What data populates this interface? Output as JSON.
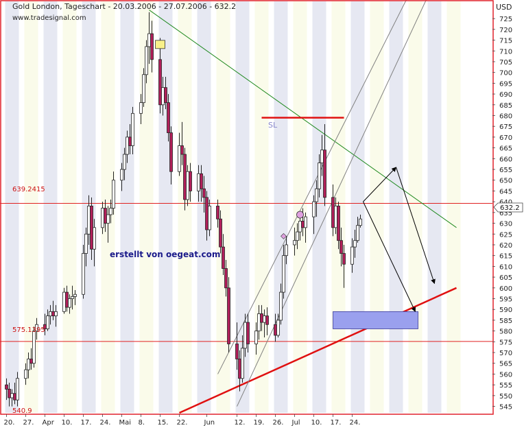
{
  "header": {
    "title": "Gold London, Tageschart - 20.03.2006 - 27.07.2006 - 632.2",
    "source": "www.tradesignal.com",
    "currency": "USD"
  },
  "annotations": {
    "watermark": "erstellt von oegeat.com",
    "sl_label": "SL",
    "level_high": "639.2415",
    "level_low": "575.1395",
    "last_price": "632.2",
    "bottom_value": "540.9"
  },
  "colors": {
    "background": "#ffffff",
    "band": "#e6e8f2",
    "band_light": "#fafbea",
    "border": "#e0202a",
    "candle_up": "#ffffff",
    "candle_down": "#b0205a",
    "hline": "#e02020",
    "trend_green": "#208a20",
    "support_red": "#e01010",
    "channel": "#808080",
    "arrows": "#000000",
    "target_box": "#9aa0ee",
    "text_red": "#cc1010",
    "text_navy": "#1a1a8a"
  },
  "chart_data": {
    "type": "candlestick",
    "title": "Gold London, Tageschart - 20.03.2006 - 27.07.2006 - 632.2",
    "ylabel": "USD",
    "ylim": [
      542,
      733
    ],
    "y_ticks": [
      545,
      550,
      555,
      560,
      565,
      570,
      575,
      580,
      585,
      590,
      595,
      600,
      605,
      610,
      615,
      620,
      625,
      630,
      635,
      640,
      645,
      650,
      655,
      660,
      665,
      670,
      675,
      680,
      685,
      690,
      695,
      700,
      705,
      710,
      715,
      720,
      725
    ],
    "x_tick_labels": [
      {
        "label": "20.",
        "date": "2006-03-20"
      },
      {
        "label": "27.",
        "date": "2006-03-27"
      },
      {
        "label": "Apr",
        "date": "2006-04-03"
      },
      {
        "label": "10.",
        "date": "2006-04-10"
      },
      {
        "label": "17.",
        "date": "2006-04-17"
      },
      {
        "label": "24.",
        "date": "2006-04-24"
      },
      {
        "label": "Mai",
        "date": "2006-05-01"
      },
      {
        "label": "8.",
        "date": "2006-05-08"
      },
      {
        "label": "15.",
        "date": "2006-05-15"
      },
      {
        "label": "22.",
        "date": "2006-05-22"
      },
      {
        "label": "Jun",
        "date": "2006-06-01"
      },
      {
        "label": "12.",
        "date": "2006-06-12"
      },
      {
        "label": "19.",
        "date": "2006-06-19"
      },
      {
        "label": "26.",
        "date": "2006-06-26"
      },
      {
        "label": "Jul",
        "date": "2006-07-03"
      },
      {
        "label": "10.",
        "date": "2006-07-10"
      },
      {
        "label": "17.",
        "date": "2006-07-17"
      },
      {
        "label": "24.",
        "date": "2006-07-24"
      }
    ],
    "candles": [
      {
        "d": "2006-03-20",
        "o": 555,
        "h": 558,
        "l": 548,
        "c": 553
      },
      {
        "d": "2006-03-21",
        "o": 553,
        "h": 556,
        "l": 545,
        "c": 549
      },
      {
        "d": "2006-03-22",
        "o": 549,
        "h": 553,
        "l": 545,
        "c": 551
      },
      {
        "d": "2006-03-23",
        "o": 551,
        "h": 556,
        "l": 546,
        "c": 548
      },
      {
        "d": "2006-03-24",
        "o": 548,
        "h": 561,
        "l": 545,
        "c": 558
      },
      {
        "d": "2006-03-27",
        "o": 558,
        "h": 565,
        "l": 555,
        "c": 562
      },
      {
        "d": "2006-03-28",
        "o": 562,
        "h": 570,
        "l": 558,
        "c": 567
      },
      {
        "d": "2006-03-29",
        "o": 567,
        "h": 572,
        "l": 562,
        "c": 565
      },
      {
        "d": "2006-03-30",
        "o": 565,
        "h": 582,
        "l": 563,
        "c": 580
      },
      {
        "d": "2006-03-31",
        "o": 580,
        "h": 586,
        "l": 576,
        "c": 583
      },
      {
        "d": "2006-04-03",
        "o": 583,
        "h": 588,
        "l": 578,
        "c": 581
      },
      {
        "d": "2006-04-04",
        "o": 581,
        "h": 590,
        "l": 580,
        "c": 587
      },
      {
        "d": "2006-04-05",
        "o": 587,
        "h": 592,
        "l": 583,
        "c": 589
      },
      {
        "d": "2006-04-06",
        "o": 589,
        "h": 594,
        "l": 585,
        "c": 587
      },
      {
        "d": "2006-04-07",
        "o": 587,
        "h": 592,
        "l": 582,
        "c": 589
      },
      {
        "d": "2006-04-10",
        "o": 589,
        "h": 600,
        "l": 588,
        "c": 598
      },
      {
        "d": "2006-04-11",
        "o": 598,
        "h": 601,
        "l": 589,
        "c": 591
      },
      {
        "d": "2006-04-12",
        "o": 591,
        "h": 597,
        "l": 588,
        "c": 595
      },
      {
        "d": "2006-04-13",
        "o": 595,
        "h": 601,
        "l": 590,
        "c": 596
      },
      {
        "d": "2006-04-14",
        "o": 596,
        "h": 599,
        "l": 592,
        "c": 597
      },
      {
        "d": "2006-04-17",
        "o": 597,
        "h": 620,
        "l": 595,
        "c": 616
      },
      {
        "d": "2006-04-18",
        "o": 616,
        "h": 628,
        "l": 610,
        "c": 625
      },
      {
        "d": "2006-04-19",
        "o": 625,
        "h": 643,
        "l": 620,
        "c": 638
      },
      {
        "d": "2006-04-20",
        "o": 638,
        "h": 642,
        "l": 613,
        "c": 618
      },
      {
        "d": "2006-04-21",
        "o": 618,
        "h": 632,
        "l": 610,
        "c": 628
      },
      {
        "d": "2006-04-24",
        "o": 628,
        "h": 640,
        "l": 625,
        "c": 637
      },
      {
        "d": "2006-04-25",
        "o": 637,
        "h": 641,
        "l": 626,
        "c": 630
      },
      {
        "d": "2006-04-26",
        "o": 630,
        "h": 638,
        "l": 621,
        "c": 634
      },
      {
        "d": "2006-04-27",
        "o": 634,
        "h": 641,
        "l": 630,
        "c": 637
      },
      {
        "d": "2006-04-28",
        "o": 637,
        "h": 654,
        "l": 634,
        "c": 650
      },
      {
        "d": "2006-05-01",
        "o": 650,
        "h": 658,
        "l": 645,
        "c": 655
      },
      {
        "d": "2006-05-02",
        "o": 655,
        "h": 665,
        "l": 650,
        "c": 662
      },
      {
        "d": "2006-05-03",
        "o": 662,
        "h": 673,
        "l": 658,
        "c": 670
      },
      {
        "d": "2006-05-04",
        "o": 670,
        "h": 676,
        "l": 662,
        "c": 666
      },
      {
        "d": "2006-05-05",
        "o": 666,
        "h": 684,
        "l": 662,
        "c": 681
      },
      {
        "d": "2006-05-08",
        "o": 681,
        "h": 690,
        "l": 676,
        "c": 686
      },
      {
        "d": "2006-05-09",
        "o": 686,
        "h": 702,
        "l": 684,
        "c": 699
      },
      {
        "d": "2006-05-10",
        "o": 699,
        "h": 715,
        "l": 695,
        "c": 712
      },
      {
        "d": "2006-05-11",
        "o": 712,
        "h": 728,
        "l": 704,
        "c": 718
      },
      {
        "d": "2006-05-12",
        "o": 718,
        "h": 724,
        "l": 700,
        "c": 706
      },
      {
        "d": "2006-05-15",
        "o": 706,
        "h": 716,
        "l": 681,
        "c": 685
      },
      {
        "d": "2006-05-16",
        "o": 685,
        "h": 698,
        "l": 680,
        "c": 693
      },
      {
        "d": "2006-05-17",
        "o": 693,
        "h": 698,
        "l": 683,
        "c": 686
      },
      {
        "d": "2006-05-18",
        "o": 686,
        "h": 690,
        "l": 668,
        "c": 672
      },
      {
        "d": "2006-05-19",
        "o": 672,
        "h": 675,
        "l": 648,
        "c": 654
      },
      {
        "d": "2006-05-22",
        "o": 654,
        "h": 672,
        "l": 652,
        "c": 666
      },
      {
        "d": "2006-05-23",
        "o": 666,
        "h": 677,
        "l": 657,
        "c": 662
      },
      {
        "d": "2006-05-24",
        "o": 662,
        "h": 665,
        "l": 636,
        "c": 641
      },
      {
        "d": "2006-05-25",
        "o": 641,
        "h": 657,
        "l": 638,
        "c": 654
      },
      {
        "d": "2006-05-26",
        "o": 654,
        "h": 658,
        "l": 640,
        "c": 645
      },
      {
        "d": "2006-05-29",
        "o": 645,
        "h": 657,
        "l": 640,
        "c": 653
      },
      {
        "d": "2006-05-30",
        "o": 653,
        "h": 657,
        "l": 640,
        "c": 646
      },
      {
        "d": "2006-05-31",
        "o": 646,
        "h": 652,
        "l": 635,
        "c": 642
      },
      {
        "d": "2006-06-01",
        "o": 642,
        "h": 645,
        "l": 622,
        "c": 627
      },
      {
        "d": "2006-06-02",
        "o": 627,
        "h": 641,
        "l": 624,
        "c": 638
      },
      {
        "d": "2006-06-05",
        "o": 638,
        "h": 641,
        "l": 628,
        "c": 632
      },
      {
        "d": "2006-06-06",
        "o": 632,
        "h": 636,
        "l": 616,
        "c": 619
      },
      {
        "d": "2006-06-07",
        "o": 619,
        "h": 625,
        "l": 606,
        "c": 609
      },
      {
        "d": "2006-06-08",
        "o": 609,
        "h": 613,
        "l": 596,
        "c": 600
      },
      {
        "d": "2006-06-09",
        "o": 600,
        "h": 605,
        "l": 570,
        "c": 574
      },
      {
        "d": "2006-06-12",
        "o": 574,
        "h": 584,
        "l": 562,
        "c": 567
      },
      {
        "d": "2006-06-13",
        "o": 567,
        "h": 571,
        "l": 552,
        "c": 558
      },
      {
        "d": "2006-06-14",
        "o": 558,
        "h": 578,
        "l": 556,
        "c": 572
      },
      {
        "d": "2006-06-15",
        "o": 572,
        "h": 588,
        "l": 568,
        "c": 584
      },
      {
        "d": "2006-06-16",
        "o": 584,
        "h": 588,
        "l": 570,
        "c": 574
      },
      {
        "d": "2006-06-19",
        "o": 574,
        "h": 584,
        "l": 569,
        "c": 580
      },
      {
        "d": "2006-06-20",
        "o": 580,
        "h": 592,
        "l": 576,
        "c": 588
      },
      {
        "d": "2006-06-21",
        "o": 588,
        "h": 592,
        "l": 580,
        "c": 584
      },
      {
        "d": "2006-06-22",
        "o": 584,
        "h": 590,
        "l": 577,
        "c": 587
      },
      {
        "d": "2006-06-23",
        "o": 587,
        "h": 591,
        "l": 578,
        "c": 583
      },
      {
        "d": "2006-06-26",
        "o": 583,
        "h": 588,
        "l": 575,
        "c": 578
      },
      {
        "d": "2006-06-27",
        "o": 578,
        "h": 588,
        "l": 577,
        "c": 585
      },
      {
        "d": "2006-06-28",
        "o": 585,
        "h": 602,
        "l": 583,
        "c": 598
      },
      {
        "d": "2006-06-29",
        "o": 598,
        "h": 620,
        "l": 595,
        "c": 615
      },
      {
        "d": "2006-06-30",
        "o": 615,
        "h": 624,
        "l": 611,
        "c": 620
      },
      {
        "d": "2006-07-03",
        "o": 620,
        "h": 628,
        "l": 615,
        "c": 622
      },
      {
        "d": "2006-07-04",
        "o": 622,
        "h": 630,
        "l": 618,
        "c": 626
      },
      {
        "d": "2006-07-05",
        "o": 626,
        "h": 634,
        "l": 622,
        "c": 631
      },
      {
        "d": "2006-07-06",
        "o": 631,
        "h": 637,
        "l": 624,
        "c": 628
      },
      {
        "d": "2006-07-07",
        "o": 628,
        "h": 635,
        "l": 621,
        "c": 633
      },
      {
        "d": "2006-07-10",
        "o": 633,
        "h": 643,
        "l": 625,
        "c": 640
      },
      {
        "d": "2006-07-11",
        "o": 640,
        "h": 650,
        "l": 633,
        "c": 646
      },
      {
        "d": "2006-07-12",
        "o": 646,
        "h": 662,
        "l": 642,
        "c": 658
      },
      {
        "d": "2006-07-13",
        "o": 658,
        "h": 671,
        "l": 652,
        "c": 664
      },
      {
        "d": "2006-07-14",
        "o": 664,
        "h": 676,
        "l": 638,
        "c": 642
      },
      {
        "d": "2006-07-17",
        "o": 642,
        "h": 648,
        "l": 624,
        "c": 628
      },
      {
        "d": "2006-07-18",
        "o": 628,
        "h": 642,
        "l": 625,
        "c": 638
      },
      {
        "d": "2006-07-19",
        "o": 638,
        "h": 640,
        "l": 618,
        "c": 622
      },
      {
        "d": "2006-07-20",
        "o": 622,
        "h": 628,
        "l": 610,
        "c": 616
      },
      {
        "d": "2006-07-21",
        "o": 616,
        "h": 620,
        "l": 600,
        "c": 611
      },
      {
        "d": "2006-07-24",
        "o": 611,
        "h": 623,
        "l": 607,
        "c": 619
      },
      {
        "d": "2006-07-25",
        "o": 619,
        "h": 627,
        "l": 614,
        "c": 622
      },
      {
        "d": "2006-07-26",
        "o": 622,
        "h": 633,
        "l": 621,
        "c": 629
      },
      {
        "d": "2006-07-27",
        "o": 629,
        "h": 634,
        "l": 628,
        "c": 632
      }
    ],
    "horizontal_levels": [
      639.2415,
      575.1395
    ],
    "resistance_line": {
      "from": {
        "d": "2006-05-11",
        "y": 729
      },
      "to": {
        "d": "2006-08-31",
        "y": 628
      }
    },
    "support_line": {
      "from": {
        "d": "2006-05-22",
        "y": 542
      },
      "to": {
        "d": "2006-08-31",
        "y": 600
      }
    },
    "stop_loss_segment": {
      "from": {
        "d": "2006-06-21",
        "y": 679
      },
      "to": {
        "d": "2006-07-21",
        "y": 679
      }
    },
    "channel_lines": [
      {
        "from": {
          "d": "2006-06-05",
          "y": 560
        },
        "to": {
          "d": "2006-08-16",
          "y": 742
        }
      },
      {
        "from": {
          "d": "2006-06-12",
          "y": 545
        },
        "to": {
          "d": "2006-08-23",
          "y": 742
        }
      }
    ],
    "scenario_arrows": [
      [
        {
          "d": "2006-07-28",
          "y": 640
        },
        {
          "d": "2006-08-09",
          "y": 656
        }
      ],
      [
        {
          "d": "2006-08-09",
          "y": 656
        },
        {
          "d": "2006-08-23",
          "y": 602
        }
      ],
      [
        {
          "d": "2006-07-28",
          "y": 640
        },
        {
          "d": "2006-08-16",
          "y": 589
        }
      ]
    ],
    "target_zone": {
      "from_d": "2006-07-17",
      "to_d": "2006-08-17",
      "y_low": 581,
      "y_high": 589
    },
    "markers": [
      {
        "shape": "square",
        "d": "2006-05-15",
        "y": 713,
        "color": "#f8f08a"
      },
      {
        "shape": "circle",
        "d": "2006-07-05",
        "y": 634,
        "color": "#e0a0e0"
      },
      {
        "shape": "diamond",
        "d": "2006-06-29",
        "y": 624,
        "color": "#e0a0e0"
      }
    ]
  }
}
